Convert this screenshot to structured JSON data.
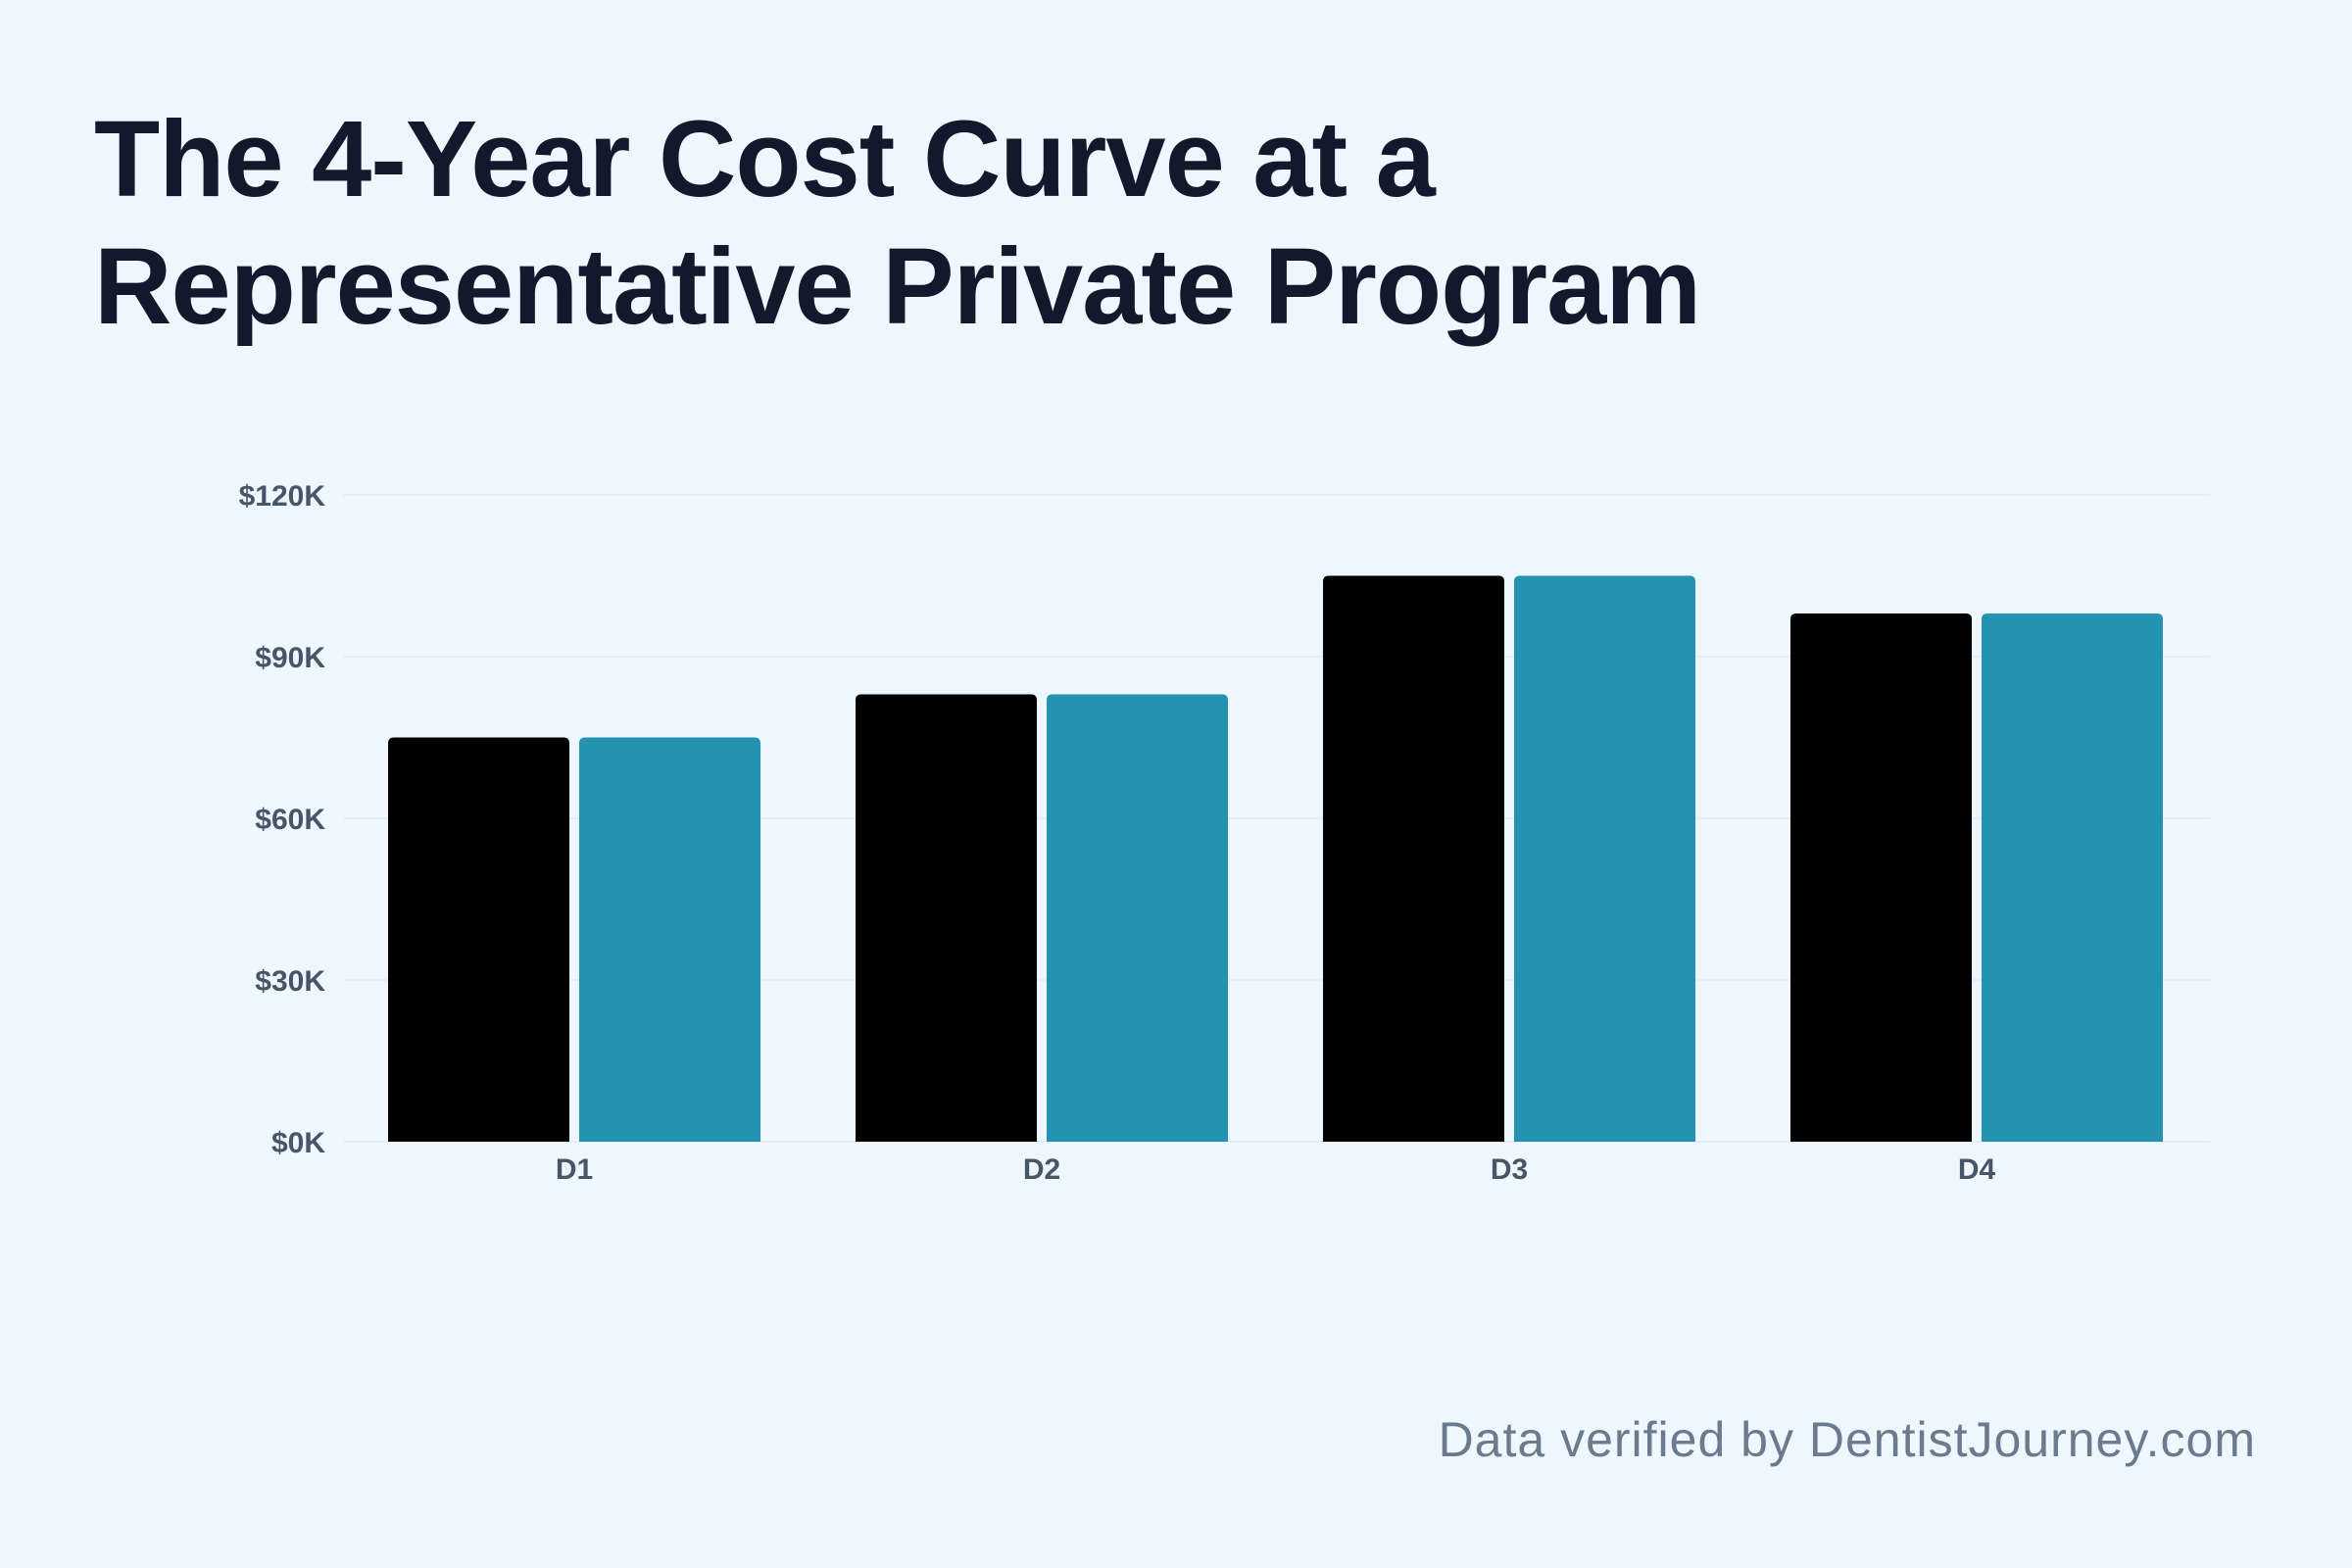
{
  "title": {
    "line1": "The 4-Year Cost Curve at a",
    "line2": "Representative Private Program"
  },
  "footer": "Data verified by DentistJourney.com",
  "colors": {
    "series1": "#000000",
    "series2": "#2492b0",
    "grid": "#e3eef8",
    "tick_text": "#465568",
    "title_text": "#111a2c",
    "background": "#eff7fe"
  },
  "chart_data": {
    "type": "bar",
    "categories": [
      "D1",
      "D2",
      "D3",
      "D4"
    ],
    "series": [
      {
        "values": [
          75000,
          83000,
          105000,
          98000
        ]
      },
      {
        "values": [
          75000,
          83000,
          105000,
          98000
        ]
      }
    ],
    "yticks": [
      0,
      30000,
      60000,
      90000,
      120000
    ],
    "ytick_labels": [
      "$0K",
      "$30K",
      "$60K",
      "$90K",
      "$120K"
    ],
    "ylim": [
      0,
      120000
    ],
    "grid": true,
    "legend": "none",
    "xlabel": "",
    "ylabel": ""
  }
}
